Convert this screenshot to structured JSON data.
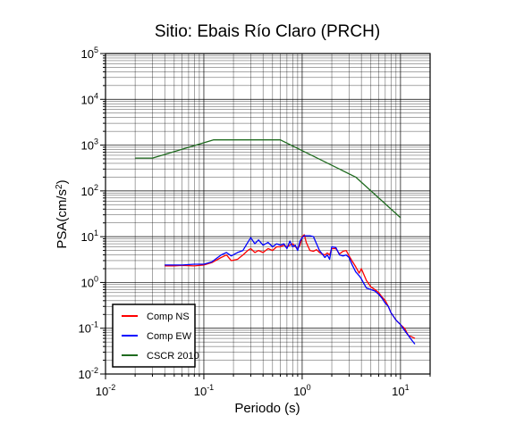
{
  "chart_data": {
    "type": "line",
    "title": "Sitio: Ebais Río Claro (PRCH)",
    "xlabel": "Periodo (s)",
    "ylabel": {
      "base": "PSA(cm/s",
      "sup": "2",
      "tail": ")"
    },
    "xscale": "log",
    "yscale": "log",
    "xlim": [
      0.01,
      20
    ],
    "ylim": [
      0.01,
      100000
    ],
    "x_ticks": [
      {
        "base": "10",
        "exp": "-2",
        "value": 0.01
      },
      {
        "base": "10",
        "exp": "-1",
        "value": 0.1
      },
      {
        "base": "10",
        "exp": "0",
        "value": 1
      },
      {
        "base": "10",
        "exp": "1",
        "value": 10
      }
    ],
    "y_ticks": [
      {
        "base": "10",
        "exp": "-2",
        "value": 0.01
      },
      {
        "base": "10",
        "exp": "-1",
        "value": 0.1
      },
      {
        "base": "10",
        "exp": "0",
        "value": 1
      },
      {
        "base": "10",
        "exp": "1",
        "value": 10
      },
      {
        "base": "10",
        "exp": "2",
        "value": 100
      },
      {
        "base": "10",
        "exp": "3",
        "value": 1000
      },
      {
        "base": "10",
        "exp": "4",
        "value": 10000
      },
      {
        "base": "10",
        "exp": "5",
        "value": 100000
      }
    ],
    "grid": true,
    "legend_position": "bottom-left",
    "series": [
      {
        "name": "Comp NS",
        "color": "#ff0000",
        "x": [
          0.04,
          0.05,
          0.06,
          0.08,
          0.1,
          0.12,
          0.15,
          0.17,
          0.19,
          0.22,
          0.25,
          0.28,
          0.3,
          0.33,
          0.36,
          0.4,
          0.45,
          0.5,
          0.55,
          0.6,
          0.65,
          0.7,
          0.75,
          0.8,
          0.85,
          0.9,
          0.95,
          1.0,
          1.05,
          1.1,
          1.2,
          1.3,
          1.4,
          1.5,
          1.6,
          1.7,
          1.8,
          1.9,
          2.0,
          2.2,
          2.4,
          2.6,
          2.8,
          3.0,
          3.2,
          3.5,
          3.8,
          4.0,
          4.5,
          5.0,
          5.5,
          6.0,
          6.5,
          7.0,
          7.5,
          8.0,
          9.0,
          10.0,
          11.0,
          12.0,
          13.0,
          14.0
        ],
        "y": [
          2.3,
          2.3,
          2.35,
          2.3,
          2.4,
          2.7,
          3.5,
          4.0,
          3.0,
          3.2,
          4.0,
          5.0,
          5.5,
          4.5,
          5.0,
          4.5,
          5.5,
          5.0,
          6.0,
          6.0,
          6.5,
          6.0,
          6.5,
          7.0,
          6.0,
          5.5,
          6.5,
          10.0,
          11.0,
          7.5,
          5.0,
          4.8,
          5.2,
          4.5,
          4.2,
          4.0,
          4.4,
          4.0,
          5.5,
          5.5,
          4.2,
          4.8,
          5.0,
          3.8,
          3.0,
          2.2,
          1.6,
          2.0,
          1.1,
          0.8,
          0.7,
          0.6,
          0.48,
          0.4,
          0.3,
          0.22,
          0.15,
          0.12,
          0.1,
          0.07,
          0.065,
          0.06
        ]
      },
      {
        "name": "Comp EW",
        "color": "#0000ff",
        "x": [
          0.04,
          0.05,
          0.06,
          0.08,
          0.1,
          0.12,
          0.15,
          0.17,
          0.19,
          0.22,
          0.25,
          0.28,
          0.3,
          0.33,
          0.36,
          0.4,
          0.45,
          0.5,
          0.55,
          0.6,
          0.65,
          0.7,
          0.75,
          0.8,
          0.85,
          0.9,
          0.95,
          1.0,
          1.05,
          1.1,
          1.2,
          1.3,
          1.4,
          1.5,
          1.6,
          1.7,
          1.8,
          1.9,
          2.0,
          2.2,
          2.4,
          2.6,
          2.8,
          3.0,
          3.2,
          3.5,
          3.8,
          4.0,
          4.5,
          5.0,
          5.5,
          6.0,
          6.5,
          7.0,
          7.5,
          8.0,
          9.0,
          10.0,
          11.0,
          12.0,
          13.0,
          14.0
        ],
        "y": [
          2.4,
          2.4,
          2.4,
          2.5,
          2.5,
          2.8,
          4.0,
          4.5,
          3.8,
          4.5,
          5.0,
          7.5,
          9.5,
          7.0,
          8.5,
          6.5,
          7.5,
          6.0,
          7.0,
          6.5,
          7.0,
          5.5,
          8.0,
          6.0,
          6.5,
          5.0,
          8.0,
          9.5,
          10.5,
          10.5,
          10.5,
          10.0,
          7.0,
          5.0,
          4.2,
          3.5,
          4.0,
          3.2,
          6.0,
          5.8,
          4.0,
          3.8,
          4.0,
          3.5,
          2.5,
          1.7,
          1.4,
          1.2,
          0.75,
          0.7,
          0.65,
          0.55,
          0.45,
          0.35,
          0.3,
          0.22,
          0.15,
          0.12,
          0.09,
          0.07,
          0.055,
          0.045
        ]
      },
      {
        "name": "CSCR 2010",
        "color": "#1f6b1f",
        "x": [
          0.02,
          0.03,
          0.125,
          0.6,
          3.5,
          10.0
        ],
        "y": [
          520,
          520,
          1300,
          1300,
          200,
          26
        ]
      }
    ]
  }
}
